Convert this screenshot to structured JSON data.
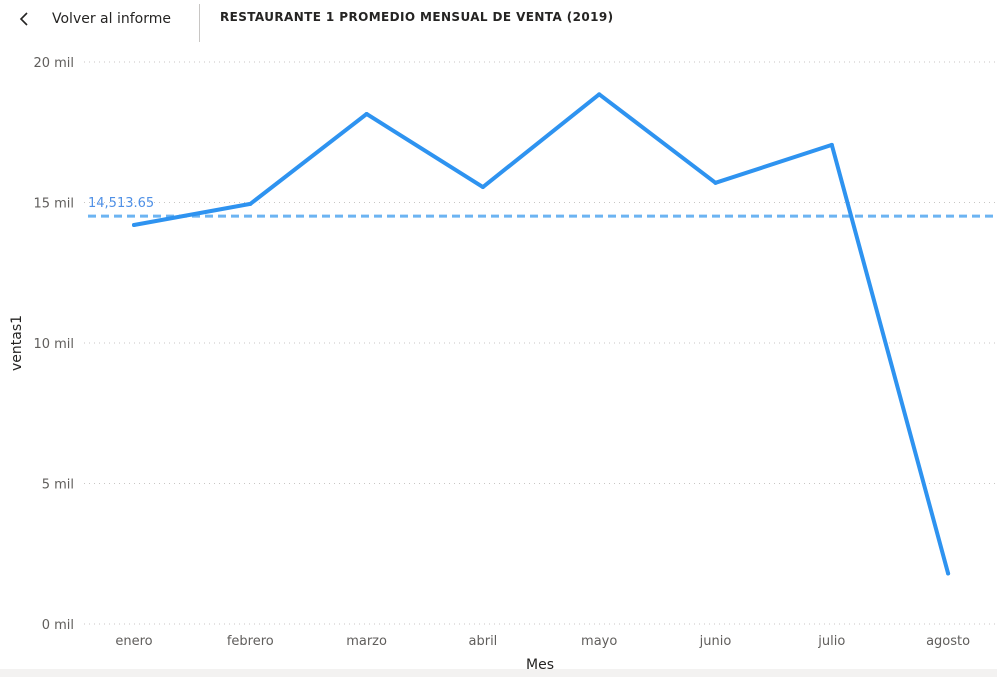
{
  "header": {
    "back_label": "Volver al informe",
    "title": "RESTAURANTE 1 PROMEDIO MENSUAL DE VENTA (2019)"
  },
  "colors": {
    "line": "#2e93f0",
    "reference_line": "#6cb4f2",
    "reference_label": "#4f90e6",
    "gridline": "#c8c6c4"
  },
  "chart_data": {
    "type": "line",
    "xlabel": "Mes",
    "ylabel": "ventas1",
    "ylim": [
      0,
      20000
    ],
    "yticks": [
      0,
      5000,
      10000,
      15000,
      20000
    ],
    "ytick_labels": [
      "0 mil",
      "5 mil",
      "10 mil",
      "15 mil",
      "20 mil"
    ],
    "grid": true,
    "categories": [
      "enero",
      "febrero",
      "marzo",
      "abril",
      "mayo",
      "junio",
      "julio",
      "agosto"
    ],
    "series": [
      {
        "values": [
          14200,
          14950,
          18150,
          15550,
          18850,
          15700,
          17050,
          1800
        ]
      }
    ],
    "reference_line": {
      "value": 14513.65,
      "label": "14,513.65",
      "style": "dashed"
    }
  }
}
